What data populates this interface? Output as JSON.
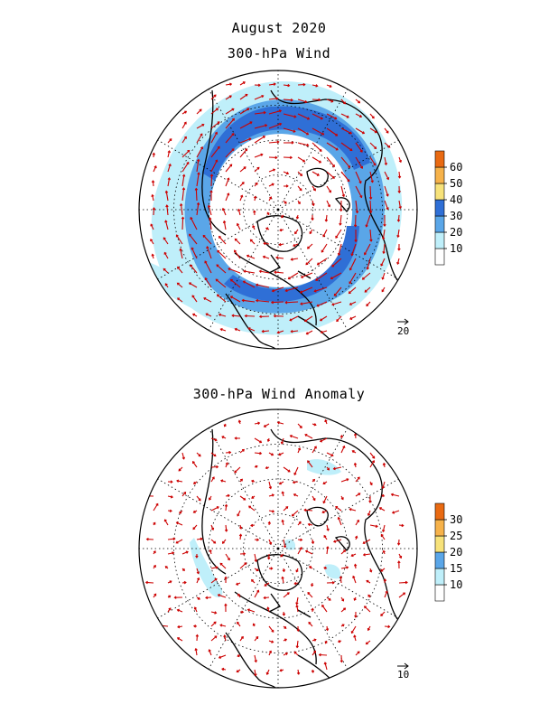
{
  "figure": {
    "title": "August 2020",
    "panels": [
      {
        "id": "wind",
        "title": "300-hPa Wind",
        "reference_vector": "20",
        "colorbar": {
          "levels": [
            "10",
            "20",
            "30",
            "40",
            "50",
            "60"
          ],
          "colors": [
            "#ffffff",
            "#bfeffa",
            "#5aa6e8",
            "#2f6fd6",
            "#f7e27a",
            "#f6b24a",
            "#e96a12"
          ]
        }
      },
      {
        "id": "anomaly",
        "title": "300-hPa Wind Anomaly",
        "reference_vector": "10",
        "colorbar": {
          "levels": [
            "10",
            "15",
            "20",
            "25",
            "30"
          ],
          "colors": [
            "#ffffff",
            "#bfeffa",
            "#5aa6e8",
            "#f7e27a",
            "#f6b24a",
            "#e96a12"
          ]
        }
      }
    ],
    "colors": {
      "vector": "#cc0000",
      "coast": "#000000",
      "grid": "#000000"
    }
  }
}
